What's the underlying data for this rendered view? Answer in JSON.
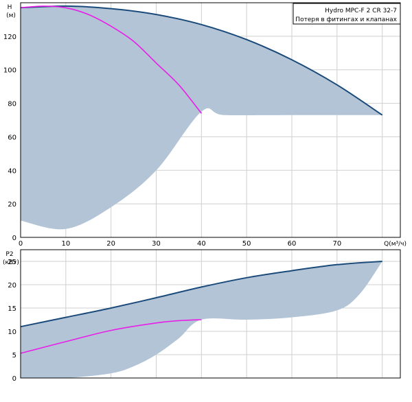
{
  "legend": {
    "title": "Hydro MPC-F 2 CR 32-7",
    "subtitle": "Потеря в фитингах и клапанах"
  },
  "colors": {
    "envelope_fill": "#b3c4d6",
    "max_curve": "#1a4a7a",
    "operating_curve": "#e81ee8",
    "grid": "#cfcfcf",
    "frame": "#000000"
  },
  "chart_data": [
    {
      "id": "head",
      "type": "area",
      "title": "",
      "ylabel_line1": "H",
      "ylabel_line2": "(м)",
      "xlabel": "Q(м³/ч)",
      "xlim": [
        0,
        84
      ],
      "ylim": [
        0,
        140
      ],
      "xticks": [
        0,
        10,
        20,
        30,
        40,
        50,
        60,
        70
      ],
      "yticks": [
        0,
        20,
        40,
        60,
        80,
        100,
        120
      ],
      "grid": true,
      "envelope_upper": {
        "x": [
          0,
          10,
          20,
          30,
          40,
          50,
          60,
          70,
          80
        ],
        "y": [
          137,
          138,
          136.5,
          133,
          127,
          118,
          106,
          91,
          73
        ]
      },
      "envelope_lower": {
        "x": [
          0,
          10,
          20,
          30,
          40,
          45,
          60,
          80
        ],
        "y": [
          10,
          5,
          18,
          40,
          75,
          73,
          73,
          73
        ]
      },
      "series": [
        {
          "name": "",
          "x": [
            0,
            5,
            10,
            15,
            20,
            25,
            30,
            35,
            40
          ],
          "y": [
            137,
            138,
            137,
            133,
            126,
            117,
            104,
            91,
            74
          ]
        }
      ]
    },
    {
      "id": "power",
      "type": "area",
      "title": "",
      "ylabel_line1": "P2",
      "ylabel_line2": "(кВт)",
      "xlabel": "",
      "xlim": [
        0,
        84
      ],
      "ylim": [
        0,
        27.5
      ],
      "xticks": [
        0,
        10,
        20,
        30,
        40,
        50,
        60,
        70
      ],
      "yticks": [
        0,
        5,
        10,
        15,
        20,
        25
      ],
      "grid": true,
      "envelope_upper": {
        "x": [
          0,
          10,
          20,
          30,
          40,
          50,
          60,
          70,
          80
        ],
        "y": [
          11,
          13,
          15,
          17.2,
          19.5,
          21.5,
          23,
          24.3,
          25
        ]
      },
      "envelope_lower": {
        "x": [
          0,
          10,
          20,
          25,
          30,
          35,
          40,
          50,
          60,
          70,
          75,
          80
        ],
        "y": [
          0,
          0,
          1,
          2.5,
          5,
          8.5,
          12.5,
          12.5,
          13,
          14.5,
          18,
          25
        ]
      },
      "series": [
        {
          "name": "",
          "x": [
            0,
            10,
            20,
            30,
            35,
            40
          ],
          "y": [
            5.3,
            7.8,
            10.2,
            11.8,
            12.3,
            12.5
          ]
        }
      ]
    }
  ]
}
